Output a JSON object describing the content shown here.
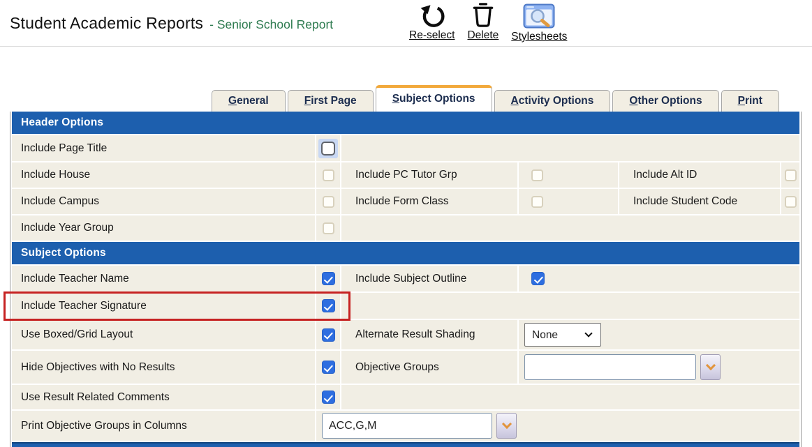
{
  "page": {
    "title": "Student Academic Reports",
    "subtitle": "- Senior School Report"
  },
  "toolbar": {
    "reselect_label": "Re-select",
    "delete_label": "Delete",
    "stylesheets_label": "Stylesheets"
  },
  "tabs": [
    {
      "label": "General",
      "active": false
    },
    {
      "label": "First Page",
      "active": false
    },
    {
      "label": "Subject Options",
      "active": true
    },
    {
      "label": "Activity Options",
      "active": false
    },
    {
      "label": "Other Options",
      "active": false
    },
    {
      "label": "Print",
      "active": false
    }
  ],
  "header_options": {
    "title": "Header Options",
    "include_page_title": {
      "label": "Include Page Title",
      "checked": false,
      "focused": true
    },
    "include_house": {
      "label": "Include House",
      "checked": false
    },
    "include_pc_tutor_grp": {
      "label": "Include PC Tutor Grp",
      "checked": false
    },
    "include_alt_id": {
      "label": "Include Alt ID",
      "checked": false
    },
    "include_campus": {
      "label": "Include Campus",
      "checked": false
    },
    "include_form_class": {
      "label": "Include Form Class",
      "checked": false
    },
    "include_student_code": {
      "label": "Include Student Code",
      "checked": false
    },
    "include_year_group": {
      "label": "Include Year Group",
      "checked": false
    }
  },
  "subject_options": {
    "title": "Subject Options",
    "include_teacher_name": {
      "label": "Include Teacher Name",
      "checked": true
    },
    "include_subject_outline": {
      "label": "Include Subject Outline",
      "checked": true
    },
    "include_teacher_signature": {
      "label": "Include Teacher Signature",
      "checked": true,
      "highlighted": true
    },
    "use_boxed_grid_layout": {
      "label": "Use Boxed/Grid Layout",
      "checked": true
    },
    "alternate_result_shading": {
      "label": "Alternate Result Shading",
      "value": "None"
    },
    "hide_objectives_no_results": {
      "label": "Hide Objectives with No Results",
      "checked": true
    },
    "objective_groups": {
      "label": "Objective Groups",
      "value": ""
    },
    "use_result_related_comments": {
      "label": "Use Result Related Comments",
      "checked": true
    },
    "print_objective_groups_in_columns": {
      "label": "Print Objective Groups in Columns",
      "value": "ACC,G,M"
    }
  },
  "colors": {
    "section_header_blue": "#1d5fae",
    "active_tab_orange": "#f2a93b",
    "checkbox_blue": "#2e6ee0",
    "annotation_red": "#c62222",
    "subtitle_green": "#2e7b50"
  }
}
